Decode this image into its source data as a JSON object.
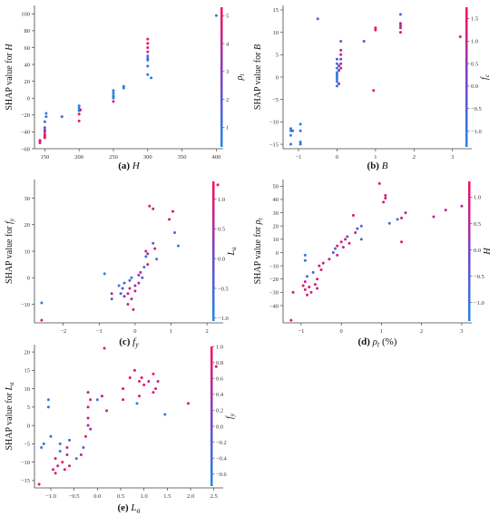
{
  "chart_data": [
    {
      "id": "a",
      "type": "scatter",
      "caption": {
        "letter": "(a)",
        "var": "H",
        "unit": ""
      },
      "ylabel": "SHAP value for H",
      "cblabel": "ρt",
      "xlim": [
        135,
        410
      ],
      "ylim": [
        -60,
        110
      ],
      "xticks": [
        "150",
        "200",
        "250",
        "300",
        "350",
        "400"
      ],
      "yticks": [
        "-60",
        "-40",
        "-20",
        "0",
        "20",
        "40",
        "60",
        "80",
        "100"
      ],
      "cbrange": [
        0.3,
        5.3
      ],
      "cbticks": [
        "1",
        "2",
        "3",
        "4",
        "5"
      ],
      "points": [
        [
          143,
          -51,
          5.0
        ],
        [
          143,
          -53,
          4.8
        ],
        [
          143,
          -50,
          4.4
        ],
        [
          150,
          -45,
          4.8
        ],
        [
          150,
          -40,
          4.0
        ],
        [
          150,
          -35,
          2.2
        ],
        [
          150,
          -28,
          1.2
        ],
        [
          150,
          -47,
          4.8
        ],
        [
          150,
          -43,
          4.8
        ],
        [
          152,
          -22,
          0.8
        ],
        [
          152,
          -18,
          0.8
        ],
        [
          150,
          -38,
          3.2
        ],
        [
          175,
          -22,
          1.2
        ],
        [
          200,
          -15,
          0.6
        ],
        [
          200,
          -12,
          0.5
        ],
        [
          200,
          -9,
          0.4
        ],
        [
          200,
          -27,
          4.8
        ],
        [
          200,
          -19,
          4.6
        ],
        [
          202,
          -14,
          4.4
        ],
        [
          250,
          -4,
          4.8
        ],
        [
          250,
          0,
          0.4
        ],
        [
          250,
          3,
          0.3
        ],
        [
          250,
          6,
          0.4
        ],
        [
          250,
          9,
          0.6
        ],
        [
          250,
          2,
          0.6
        ],
        [
          265,
          12,
          0.4
        ],
        [
          265,
          14,
          0.6
        ],
        [
          300,
          28,
          0.8
        ],
        [
          300,
          38,
          1.0
        ],
        [
          300,
          45,
          1.2
        ],
        [
          300,
          50,
          1.0
        ],
        [
          300,
          55,
          4.6
        ],
        [
          300,
          60,
          4.8
        ],
        [
          300,
          65,
          5.0
        ],
        [
          300,
          70,
          5.0
        ],
        [
          300,
          47,
          1.6
        ],
        [
          305,
          24,
          0.5
        ],
        [
          400,
          98,
          0.3
        ]
      ]
    },
    {
      "id": "b",
      "type": "scatter",
      "caption": {
        "letter": "(b)",
        "var": "B",
        "unit": ""
      },
      "ylabel": "SHAP value for B",
      "cblabel": "fc",
      "xlim": [
        -1.4,
        3.5
      ],
      "ylim": [
        -16,
        16
      ],
      "xticks": [
        "-1",
        "0",
        "1",
        "2",
        "3"
      ],
      "yticks": [
        "-15",
        "-10",
        "-5",
        "0",
        "5",
        "10",
        "15"
      ],
      "cbrange": [
        -1.35,
        1.75
      ],
      "cbticks": [
        "-1.0",
        "-0.5",
        "0.0",
        "0.5",
        "1.0",
        "1.5"
      ],
      "points": [
        [
          -1.2,
          -15,
          -1.1
        ],
        [
          -1.2,
          -12,
          -1.0
        ],
        [
          -1.2,
          -11.5,
          -0.9
        ],
        [
          -1.15,
          -12,
          -0.8
        ],
        [
          -1.2,
          -13,
          -1.2
        ],
        [
          -0.95,
          -14.5,
          -1.0
        ],
        [
          -0.95,
          -10.5,
          -1.0
        ],
        [
          -0.95,
          -12,
          -0.9
        ],
        [
          -0.95,
          -15,
          -1.1
        ],
        [
          -0.5,
          13,
          -0.7
        ],
        [
          0.0,
          -2,
          -1.0
        ],
        [
          0.0,
          -1,
          -0.8
        ],
        [
          0.0,
          0,
          -0.9
        ],
        [
          0.0,
          1,
          -1.0
        ],
        [
          0.0,
          2,
          -1.1
        ],
        [
          0.0,
          3,
          -0.8
        ],
        [
          0.0,
          4,
          -0.6
        ],
        [
          0.0,
          -0.5,
          -1.2
        ],
        [
          0.0,
          0.5,
          -0.7
        ],
        [
          0.05,
          1.5,
          1.0
        ],
        [
          0.1,
          2,
          0.6
        ],
        [
          0.1,
          3,
          1.2
        ],
        [
          0.1,
          5,
          1.4
        ],
        [
          0.1,
          8,
          -0.5
        ],
        [
          0.1,
          6,
          0.8
        ],
        [
          0.05,
          2.5,
          0.4
        ],
        [
          0.1,
          4,
          -0.3
        ],
        [
          0.05,
          -1.5,
          0.9
        ],
        [
          0.7,
          8,
          0.0
        ],
        [
          0.95,
          -3,
          1.4
        ],
        [
          1.0,
          11,
          1.6
        ],
        [
          1.0,
          10.5,
          1.5
        ],
        [
          1.65,
          10,
          1.4
        ],
        [
          1.65,
          11,
          1.2
        ],
        [
          1.65,
          11.5,
          1.0
        ],
        [
          1.65,
          12,
          0.8
        ],
        [
          1.65,
          14,
          -0.8
        ],
        [
          3.2,
          9,
          1.0
        ]
      ]
    },
    {
      "id": "c",
      "type": "scatter",
      "caption": {
        "letter": "(c)",
        "var": "fy",
        "unit": ""
      },
      "ylabel": "SHAP value for fy",
      "cblabel": "La",
      "xlim": [
        -2.8,
        2.45
      ],
      "ylim": [
        -17,
        37
      ],
      "xticks": [
        "-2",
        "-1",
        "0",
        "1",
        "2"
      ],
      "yticks": [
        "-10",
        "0",
        "10",
        "20",
        "30"
      ],
      "cbrange": [
        -1.05,
        1.3
      ],
      "cbticks": [
        "-1.0",
        "-0.5",
        "0.0",
        "0.5",
        "1.0"
      ],
      "points": [
        [
          -2.6,
          -9.5,
          -0.8
        ],
        [
          -2.6,
          -16,
          1.0
        ],
        [
          -0.85,
          1.5,
          -0.9
        ],
        [
          -0.65,
          -6,
          0.8
        ],
        [
          -0.65,
          -8,
          -0.6
        ],
        [
          -0.45,
          -3,
          -0.8
        ],
        [
          -0.4,
          -6,
          -0.5
        ],
        [
          -0.35,
          -4,
          -0.2
        ],
        [
          -0.3,
          -7,
          0.4
        ],
        [
          -0.3,
          -2,
          -0.7
        ],
        [
          -0.2,
          -10,
          0.9
        ],
        [
          -0.2,
          -6,
          1.0
        ],
        [
          -0.15,
          -4,
          0.6
        ],
        [
          -0.15,
          -1,
          -0.4
        ],
        [
          -0.1,
          0,
          -0.7
        ],
        [
          -0.1,
          -8,
          0.5
        ],
        [
          -0.05,
          -12,
          1.0
        ],
        [
          0.0,
          -3,
          0.2
        ],
        [
          0.0,
          -5,
          0.8
        ],
        [
          0.1,
          1,
          0.3
        ],
        [
          0.1,
          -2,
          0.8
        ],
        [
          0.15,
          2,
          0.6
        ],
        [
          0.2,
          0,
          -0.5
        ],
        [
          0.25,
          4,
          -0.8
        ],
        [
          0.3,
          8,
          -0.7
        ],
        [
          0.3,
          10,
          0.7
        ],
        [
          0.35,
          9,
          0.5
        ],
        [
          0.35,
          5,
          1.0
        ],
        [
          0.4,
          27,
          1.0
        ],
        [
          0.5,
          26,
          0.8
        ],
        [
          0.5,
          13,
          -0.4
        ],
        [
          0.55,
          11,
          0.9
        ],
        [
          0.6,
          7,
          -0.8
        ],
        [
          0.95,
          22,
          1.0
        ],
        [
          1.05,
          25,
          0.9
        ],
        [
          1.1,
          17,
          -0.6
        ],
        [
          1.2,
          12,
          -0.9
        ],
        [
          2.3,
          35,
          1.1
        ]
      ]
    },
    {
      "id": "d",
      "type": "scatter",
      "caption": {
        "letter": "(d)",
        "var": "ρt",
        "unit": " (%)"
      },
      "ylabel": "SHAP value for ρt",
      "cblabel": "H",
      "xlim": [
        -1.45,
        3.25
      ],
      "ylim": [
        -53,
        55
      ],
      "xticks": [
        "-1",
        "0",
        "1",
        "2",
        "3"
      ],
      "yticks": [
        "-40",
        "-30",
        "-20",
        "-10",
        "0",
        "10",
        "20",
        "30",
        "40",
        "50"
      ],
      "cbrange": [
        -1.35,
        1.3
      ],
      "cbticks": [
        "-1.0",
        "-0.5",
        "0.0",
        "0.5",
        "1.0"
      ],
      "points": [
        [
          -1.25,
          -51,
          1.1
        ],
        [
          -1.2,
          -30,
          0.9
        ],
        [
          -0.95,
          -25,
          1.0
        ],
        [
          -0.9,
          -28,
          0.9
        ],
        [
          -0.9,
          -22,
          0.8
        ],
        [
          -0.85,
          -32,
          1.0
        ],
        [
          -0.85,
          -18,
          -0.8
        ],
        [
          -0.9,
          -6,
          -0.9
        ],
        [
          -0.9,
          -2,
          -1.0
        ],
        [
          -0.8,
          -26,
          1.1
        ],
        [
          -0.75,
          -30,
          0.7
        ],
        [
          -0.7,
          -15,
          -0.7
        ],
        [
          -0.65,
          -24,
          0.9
        ],
        [
          -0.6,
          -20,
          1.0
        ],
        [
          -0.6,
          -27,
          0.6
        ],
        [
          -0.55,
          -10,
          0.8
        ],
        [
          -0.5,
          -13,
          0.9
        ],
        [
          -0.45,
          -8,
          1.0
        ],
        [
          -0.3,
          -5,
          0.8
        ],
        [
          -0.2,
          0,
          -0.5
        ],
        [
          -0.15,
          3,
          -0.8
        ],
        [
          -0.1,
          5,
          1.0
        ],
        [
          -0.1,
          -2,
          0.7
        ],
        [
          0.0,
          8,
          0.9
        ],
        [
          0.05,
          4,
          0.5
        ],
        [
          0.1,
          10,
          0.8
        ],
        [
          0.15,
          12,
          -0.4
        ],
        [
          0.2,
          7,
          1.0
        ],
        [
          0.3,
          28,
          1.0
        ],
        [
          0.35,
          15,
          0.9
        ],
        [
          0.4,
          18,
          -0.6
        ],
        [
          0.5,
          20,
          -0.8
        ],
        [
          0.5,
          10,
          -0.9
        ],
        [
          0.95,
          52,
          1.1
        ],
        [
          1.1,
          43,
          1.0
        ],
        [
          1.1,
          41,
          0.9
        ],
        [
          1.05,
          38,
          0.8
        ],
        [
          1.2,
          22,
          -0.9
        ],
        [
          1.4,
          25,
          -0.8
        ],
        [
          1.5,
          26,
          0.9
        ],
        [
          1.5,
          8,
          1.0
        ],
        [
          1.6,
          30,
          0.4
        ],
        [
          2.3,
          27,
          0.8
        ],
        [
          2.6,
          32,
          0.6
        ],
        [
          3.0,
          35,
          0.5
        ]
      ]
    },
    {
      "id": "e",
      "type": "scatter",
      "caption": {
        "letter": "(e)",
        "var": "La",
        "unit": ""
      },
      "ylabel": "SHAP value for La",
      "cblabel": "fy",
      "xlim": [
        -1.35,
        2.7
      ],
      "ylim": [
        -17,
        22
      ],
      "xticks": [
        "-1.0",
        "-0.5",
        "0.0",
        "0.5",
        "1.0",
        "1.5",
        "2.0",
        "2.5"
      ],
      "yticks": [
        "-15",
        "-10",
        "-5",
        "0",
        "5",
        "10",
        "15",
        "20"
      ],
      "cbrange": [
        -0.75,
        1.0
      ],
      "cbticks": [
        "-0.6",
        "-0.4",
        "-0.2",
        "0.0",
        "0.2",
        "0.4",
        "0.6",
        "0.8",
        "1.0"
      ],
      "points": [
        [
          -1.25,
          -16,
          0.9
        ],
        [
          -1.2,
          -6,
          -0.6
        ],
        [
          -1.15,
          -5,
          -0.5
        ],
        [
          -1.05,
          7,
          -0.6
        ],
        [
          -1.05,
          5,
          -0.5
        ],
        [
          -1.0,
          -3,
          -0.4
        ],
        [
          -0.95,
          -12,
          0.8
        ],
        [
          -0.9,
          -13,
          0.9
        ],
        [
          -0.9,
          -9,
          0.7
        ],
        [
          -0.85,
          -11,
          0.6
        ],
        [
          -0.8,
          -7,
          -0.6
        ],
        [
          -0.8,
          -5,
          -0.5
        ],
        [
          -0.75,
          -10,
          0.8
        ],
        [
          -0.7,
          -12,
          0.9
        ],
        [
          -0.65,
          -8,
          0.5
        ],
        [
          -0.65,
          -6,
          0.6
        ],
        [
          -0.6,
          -4,
          -0.3
        ],
        [
          -0.6,
          -11,
          0.7
        ],
        [
          -0.45,
          -9,
          -0.6
        ],
        [
          -0.35,
          -8,
          0.4
        ],
        [
          -0.3,
          -6,
          -0.4
        ],
        [
          -0.25,
          -3,
          0.9
        ],
        [
          -0.2,
          0,
          0.6
        ],
        [
          -0.2,
          2,
          0.7
        ],
        [
          -0.2,
          5,
          0.8
        ],
        [
          -0.15,
          7,
          0.9
        ],
        [
          -0.2,
          9,
          0.5
        ],
        [
          -0.15,
          -1,
          0.3
        ],
        [
          0.0,
          7,
          -0.6
        ],
        [
          0.1,
          8,
          0.8
        ],
        [
          0.15,
          21,
          0.9
        ],
        [
          0.2,
          4,
          0.6
        ],
        [
          0.55,
          7,
          0.8
        ],
        [
          0.55,
          10,
          0.9
        ],
        [
          0.7,
          13,
          1.0
        ],
        [
          0.8,
          15,
          0.9
        ],
        [
          0.85,
          6,
          -0.6
        ],
        [
          0.9,
          8,
          0.8
        ],
        [
          0.9,
          12,
          0.7
        ],
        [
          0.95,
          13,
          0.9
        ],
        [
          1.0,
          11,
          0.8
        ],
        [
          1.1,
          12,
          0.6
        ],
        [
          1.2,
          9,
          0.8
        ],
        [
          1.2,
          14,
          0.9
        ],
        [
          1.25,
          10,
          0.7
        ],
        [
          1.3,
          12,
          0.6
        ],
        [
          1.45,
          3,
          -0.6
        ],
        [
          1.95,
          6,
          0.9
        ],
        [
          2.55,
          16,
          0.9
        ]
      ]
    }
  ],
  "colors": {
    "low": "#1e88e5",
    "mid": "#7b3fc7",
    "high": "#ff0d57",
    "axis": "#444444"
  }
}
